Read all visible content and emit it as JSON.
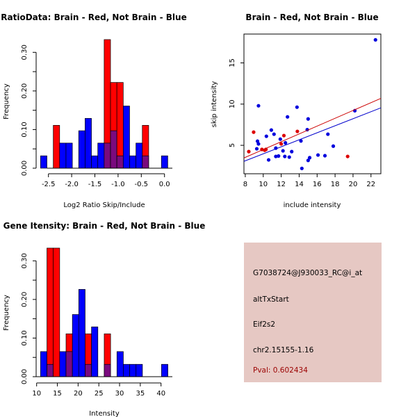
{
  "colors": {
    "brain": "#ff0000",
    "not_brain": "#0000ff",
    "overlap": "#7a0a7e",
    "panel": "#e6c8c3",
    "pval": "#9b0000"
  },
  "chart_data": [
    {
      "id": "ratio",
      "type": "bar",
      "title": "RatioData: Brain - Red, Not Brain - Blue",
      "xlabel": "Log2 Ratio Skip/Include",
      "ylabel": "Frequency",
      "bin_start": -2.67,
      "bin_width": 0.137,
      "xlim": [
        -2.5,
        0.0
      ],
      "ylim": [
        0,
        0.333
      ],
      "xticks": [
        -2.5,
        -2.0,
        -1.5,
        -1.0,
        -0.5,
        0.0
      ],
      "xtick_labels": [
        "-2.5",
        "-2.0",
        "-1.5",
        "-1.0",
        "-0.5",
        "0.0"
      ],
      "yticks": [
        0,
        0.1,
        0.2,
        0.3
      ],
      "ytick_labels": [
        "0.00",
        "0.10",
        "0.20",
        "0.30"
      ],
      "series": [
        {
          "name": "Brain",
          "color": "red",
          "values": [
            0,
            0,
            0.111,
            0,
            0,
            0,
            0,
            0,
            0,
            0,
            0.333,
            0.222,
            0.222,
            0,
            0,
            0,
            0.111,
            0,
            0,
            0
          ]
        },
        {
          "name": "Not Brain",
          "color": "blue",
          "values": [
            0.032,
            0,
            0,
            0.065,
            0.065,
            0,
            0.097,
            0.129,
            0.032,
            0.065,
            0.065,
            0.097,
            0.032,
            0.161,
            0.032,
            0.065,
            0.032,
            0,
            0,
            0.032
          ]
        }
      ]
    },
    {
      "id": "scatter",
      "type": "scatter",
      "title": "Brain - Red, Not Brain - Blue",
      "xlabel": "include intensity",
      "ylabel": "skip intensity",
      "xlim": [
        7.85,
        23.1
      ],
      "ylim": [
        1.55,
        18.5
      ],
      "xticks": [
        8,
        10,
        12,
        14,
        16,
        18,
        20,
        22
      ],
      "xtick_labels": [
        "8",
        "10",
        "12",
        "14",
        "16",
        "18",
        "20",
        "22"
      ],
      "yticks": [
        5,
        10,
        15
      ],
      "ytick_labels": [
        "5",
        "10",
        "15"
      ],
      "series": [
        {
          "name": "Not Brain",
          "color": "blue",
          "fit": [
            [
              8,
              3.12
            ],
            [
              23,
              9.5
            ]
          ],
          "points": [
            [
              22.5,
              17.8
            ],
            [
              9.47,
              9.8
            ],
            [
              13.76,
              9.63
            ],
            [
              12.7,
              8.45
            ],
            [
              15.0,
              8.2
            ],
            [
              20.2,
              9.2
            ],
            [
              14.9,
              6.9
            ],
            [
              10.9,
              6.85
            ],
            [
              11.2,
              6.35
            ],
            [
              17.2,
              6.35
            ],
            [
              10.35,
              6.1
            ],
            [
              11.9,
              5.75
            ],
            [
              9.36,
              5.5
            ],
            [
              9.47,
              5.17
            ],
            [
              14.2,
              5.53
            ],
            [
              12.47,
              5.3
            ],
            [
              9.28,
              4.58
            ],
            [
              11.4,
              4.66
            ],
            [
              17.8,
              4.9
            ],
            [
              12.2,
              4.33
            ],
            [
              13.17,
              4.24
            ],
            [
              11.4,
              3.65
            ],
            [
              11.7,
              3.7
            ],
            [
              12.4,
              3.65
            ],
            [
              12.9,
              3.57
            ],
            [
              10.6,
              3.23
            ],
            [
              16.1,
              3.82
            ],
            [
              16.87,
              3.74
            ],
            [
              15.0,
              3.17
            ],
            [
              15.17,
              3.5
            ],
            [
              14.3,
              2.2
            ]
          ]
        },
        {
          "name": "Brain",
          "color": "red",
          "fit": [
            [
              8,
              3.54
            ],
            [
              23,
              10.65
            ]
          ],
          "points": [
            [
              8.39,
              4.24
            ],
            [
              8.93,
              6.6
            ],
            [
              9.85,
              4.5
            ],
            [
              10.16,
              4.4
            ],
            [
              10.3,
              4.5
            ],
            [
              12.0,
              5.17
            ],
            [
              12.3,
              6.18
            ],
            [
              13.8,
              6.69
            ],
            [
              19.4,
              3.65
            ]
          ]
        }
      ]
    },
    {
      "id": "gene",
      "type": "bar",
      "title": "Gene Itensity: Brain - Red, Not Brain - Blue",
      "xlabel": "Intensity",
      "ylabel": "Frequency",
      "bin_start": 10.95,
      "bin_width": 1.535,
      "xlim": [
        10,
        40
      ],
      "ylim": [
        0,
        0.333
      ],
      "xticks": [
        10,
        15,
        20,
        25,
        30,
        35,
        40
      ],
      "xtick_labels": [
        "10",
        "15",
        "20",
        "25",
        "30",
        "35",
        "40"
      ],
      "yticks": [
        0,
        0.1,
        0.2,
        0.3
      ],
      "ytick_labels": [
        "0.00",
        "0.10",
        "0.20",
        "0.30"
      ],
      "series": [
        {
          "name": "Brain",
          "color": "red",
          "values": [
            0,
            0.333,
            0.333,
            0,
            0.111,
            0,
            0,
            0.111,
            0,
            0,
            0.111,
            0,
            0,
            0,
            0,
            0,
            0,
            0,
            0,
            0
          ]
        },
        {
          "name": "Not Brain",
          "color": "blue",
          "values": [
            0.065,
            0.032,
            0,
            0.065,
            0.065,
            0.161,
            0.226,
            0.032,
            0.129,
            0,
            0.032,
            0,
            0.065,
            0.032,
            0.032,
            0.032,
            0,
            0,
            0,
            0.032
          ]
        }
      ]
    }
  ],
  "info_panel": {
    "probe": "G7038724@J930033_RC@i_at",
    "event_type": "altTxStart",
    "gene": "Eif2s2",
    "location": "chr2.15155-1.16",
    "pval": "Pval: 0.602434"
  }
}
